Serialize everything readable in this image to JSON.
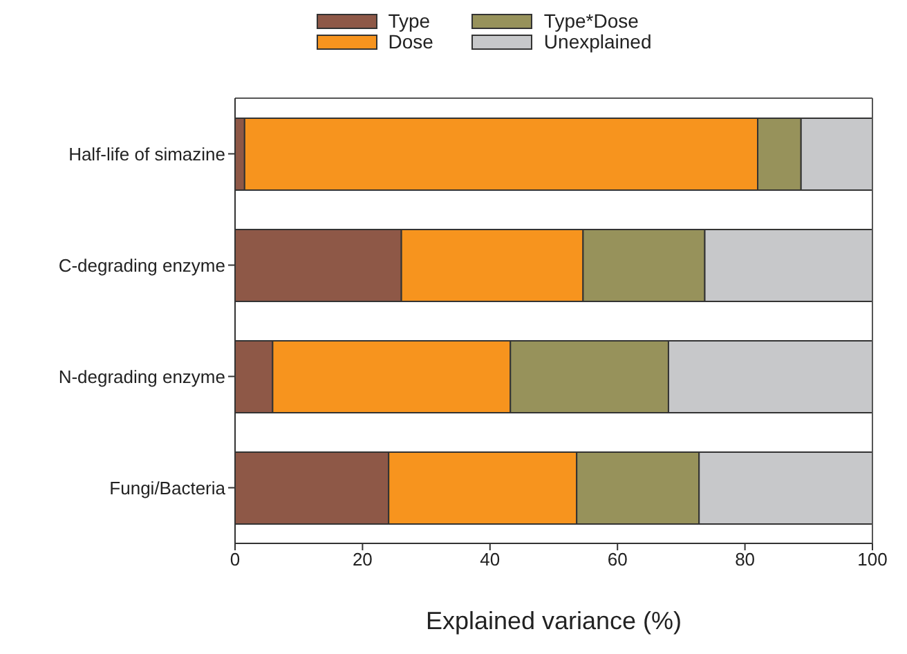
{
  "chart_data": {
    "type": "bar",
    "orientation": "horizontal",
    "stacked": true,
    "xlabel": "Explained variance (%)",
    "categories": [
      "Half-life of simazine",
      "C-degrading enzyme",
      "N-degrading enzyme",
      "Fungi/Bacteria"
    ],
    "series": [
      {
        "name": "Type",
        "color": "#8e5847",
        "values": [
          1.5,
          26.1,
          5.9,
          24.1
        ]
      },
      {
        "name": "Dose",
        "color": "#f7941e",
        "values": [
          80.5,
          28.5,
          37.3,
          29.5
        ]
      },
      {
        "name": "Type*Dose",
        "color": "#97925b",
        "values": [
          6.8,
          19.1,
          24.8,
          19.2
        ]
      },
      {
        "name": "Unexplained",
        "color": "#c7c8ca",
        "values": [
          11.2,
          26.3,
          32.0,
          27.2
        ]
      }
    ],
    "xlim": [
      0,
      100
    ],
    "xticks": [
      0,
      20,
      40,
      60,
      80,
      100
    ],
    "legend": "top"
  }
}
